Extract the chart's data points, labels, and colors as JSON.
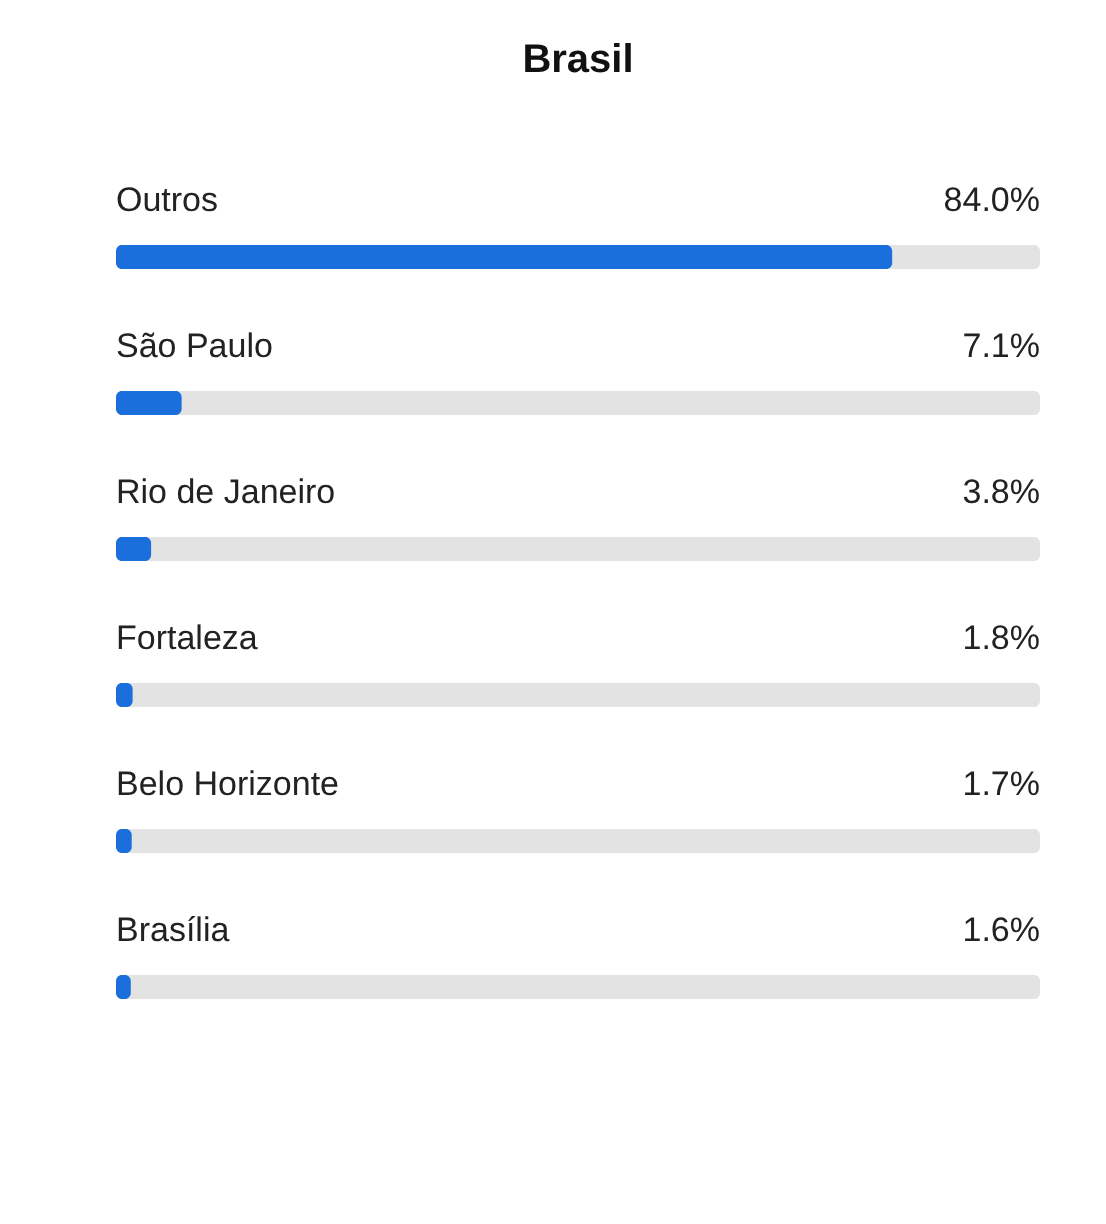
{
  "chart_data": {
    "type": "bar",
    "orientation": "horizontal",
    "title": "Brasil",
    "categories": [
      "Outros",
      "São Paulo",
      "Rio de Janeiro",
      "Fortaleza",
      "Belo Horizonte",
      "Brasília"
    ],
    "values": [
      84.0,
      7.1,
      3.8,
      1.8,
      1.7,
      1.6
    ],
    "value_labels": [
      "84.0%",
      "7.1%",
      "3.8%",
      "1.8%",
      "1.7%",
      "1.6%"
    ],
    "color": "#1a6fdc",
    "xlim": [
      0,
      100
    ]
  }
}
